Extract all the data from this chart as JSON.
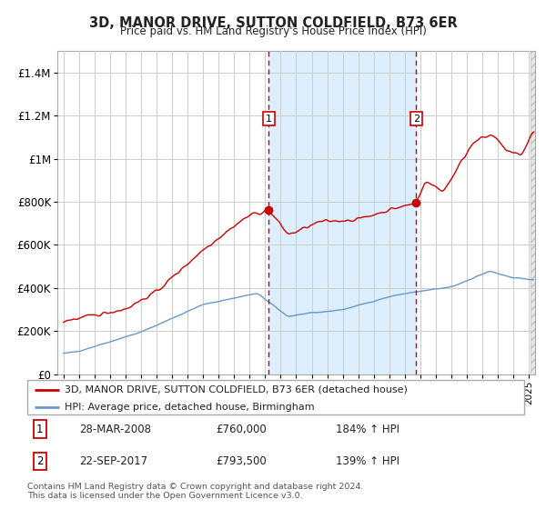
{
  "title": "3D, MANOR DRIVE, SUTTON COLDFIELD, B73 6ER",
  "subtitle": "Price paid vs. HM Land Registry's House Price Index (HPI)",
  "legend1": "3D, MANOR DRIVE, SUTTON COLDFIELD, B73 6ER (detached house)",
  "legend2": "HPI: Average price, detached house, Birmingham",
  "sale1_date": "28-MAR-2008",
  "sale1_price": 760000,
  "sale1_pct": "184%",
  "sale2_date": "22-SEP-2017",
  "sale2_price": 793500,
  "sale2_pct": "139%",
  "footer1": "Contains HM Land Registry data © Crown copyright and database right 2024.",
  "footer2": "This data is licensed under the Open Government Licence v3.0.",
  "red_color": "#cc0000",
  "blue_color": "#6699cc",
  "shade_color": "#ddeeff",
  "vline_color": "#cc0000",
  "background_color": "#ffffff",
  "grid_color": "#cccccc",
  "ylim": [
    0,
    1500000
  ],
  "yticks": [
    0,
    200000,
    400000,
    600000,
    800000,
    1000000,
    1200000,
    1400000
  ],
  "ytick_labels": [
    "£0",
    "£200K",
    "£400K",
    "£600K",
    "£800K",
    "£1M",
    "£1.2M",
    "£1.4M"
  ],
  "sale1_year": 2008.24,
  "sale2_year": 2017.73
}
